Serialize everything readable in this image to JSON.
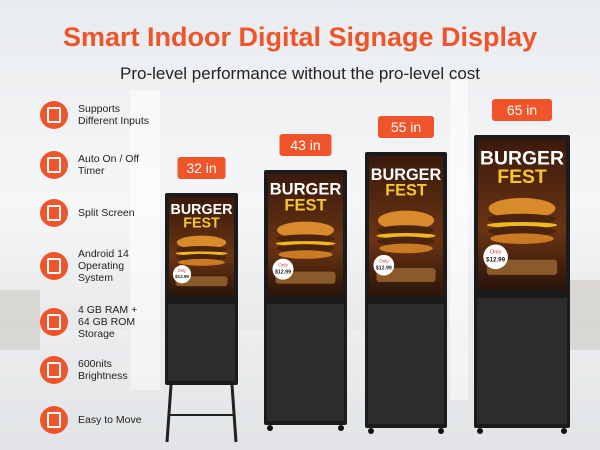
{
  "header": {
    "title": "Smart Indoor Digital Signage Display",
    "subtitle": "Pro-level performance without the pro-level cost"
  },
  "features": [
    {
      "label": "Supports Different Inputs"
    },
    {
      "label": "Auto On / Off Timer"
    },
    {
      "label": "Split Screen"
    },
    {
      "label": "Android 14 Operating System"
    },
    {
      "label": "4 GB RAM + 64 GB ROM Storage"
    },
    {
      "label": "600nits Brightness"
    },
    {
      "label": "Easy to Move"
    }
  ],
  "displays": [
    {
      "size": "32 in"
    },
    {
      "size": "43 in"
    },
    {
      "size": "55 in"
    },
    {
      "size": "65 in"
    }
  ],
  "screen": {
    "headline": "BURGER",
    "subhead": "FEST",
    "price_prefix": "Only",
    "price": "$12.99"
  }
}
